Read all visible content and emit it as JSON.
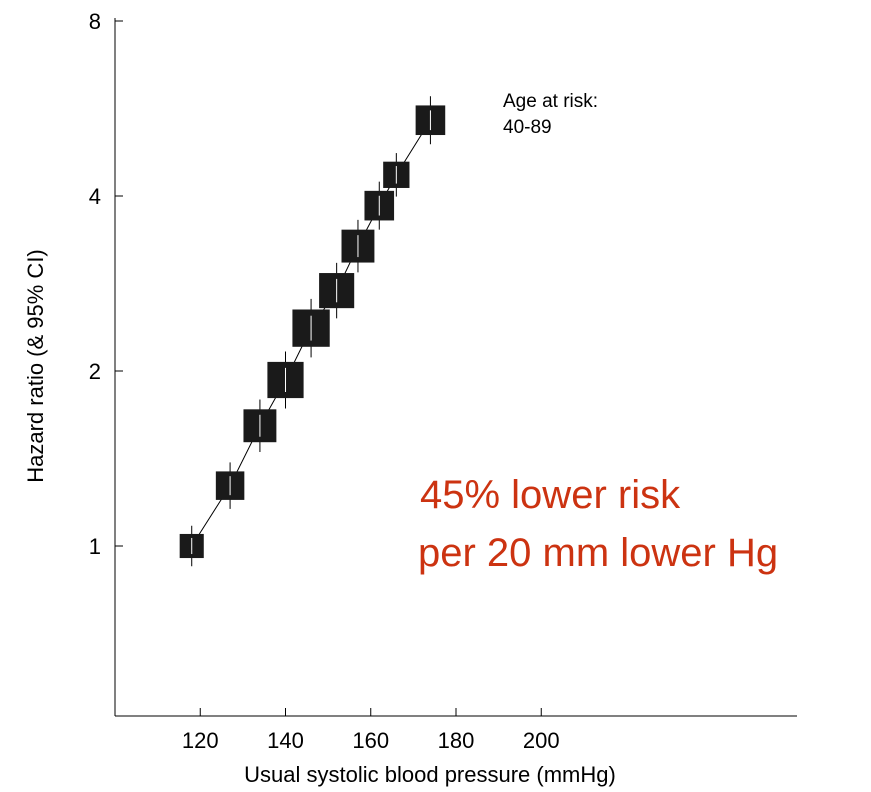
{
  "chart_data": {
    "type": "scatter",
    "title": "",
    "xlabel": "Usual systolic blood pressure (mmHg)",
    "ylabel": "Hazard ratio (& 95% CI)",
    "xlim": [
      100,
      260
    ],
    "ylim_log2": [
      0.5,
      8
    ],
    "x_ticks": [
      "120",
      "140",
      "160",
      "180",
      "200"
    ],
    "x_tick_values": [
      120,
      140,
      160,
      180,
      200
    ],
    "y_ticks": [
      "1",
      "2",
      "4",
      "8"
    ],
    "y_tick_values": [
      1,
      2,
      4,
      8
    ],
    "y_scale": "log",
    "grid": false,
    "marker": "square",
    "marker_color": "#1a1a1a",
    "series": [
      {
        "points": [
          {
            "x": 118,
            "y": 1.0,
            "weight": 0.55
          },
          {
            "x": 127,
            "y": 1.27,
            "weight": 0.75
          },
          {
            "x": 134,
            "y": 1.61,
            "weight": 0.95
          },
          {
            "x": 140,
            "y": 1.93,
            "weight": 1.1
          },
          {
            "x": 146,
            "y": 2.37,
            "weight": 1.15
          },
          {
            "x": 152,
            "y": 2.75,
            "weight": 1.05
          },
          {
            "x": 157,
            "y": 3.28,
            "weight": 0.95
          },
          {
            "x": 162,
            "y": 3.85,
            "weight": 0.8
          },
          {
            "x": 166,
            "y": 4.35,
            "weight": 0.65
          },
          {
            "x": 174,
            "y": 5.4,
            "weight": 0.8
          }
        ]
      }
    ],
    "annotations": {
      "age_label": "Age at risk:",
      "age_value": "40-89",
      "risk_line1": "45% lower risk",
      "risk_line2": "per 20 mm lower Hg",
      "risk_color": "#cc3311"
    }
  }
}
